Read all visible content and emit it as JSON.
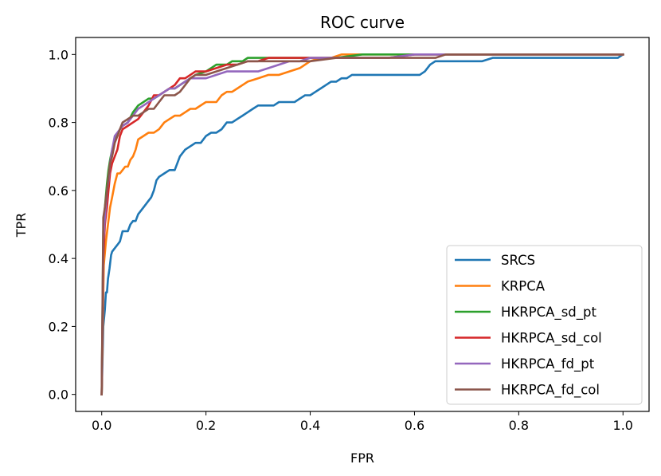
{
  "chart_data": {
    "type": "line",
    "title": "ROC curve",
    "xlabel": "FPR",
    "ylabel": "TPR",
    "xlim": [
      -0.05,
      1.05
    ],
    "ylim": [
      -0.05,
      1.05
    ],
    "xticks": [
      0.0,
      0.2,
      0.4,
      0.6,
      0.8,
      1.0
    ],
    "yticks": [
      0.0,
      0.2,
      0.4,
      0.6,
      0.8,
      1.0
    ],
    "xtick_labels": [
      "0.0",
      "0.2",
      "0.4",
      "0.6",
      "0.8",
      "1.0"
    ],
    "ytick_labels": [
      "0.0",
      "0.2",
      "0.4",
      "0.6",
      "0.8",
      "1.0"
    ],
    "grid": false,
    "legend_position": "lower-right",
    "series": [
      {
        "name": "SRCS",
        "color": "#1f77b4",
        "x": [
          0.0,
          0.003,
          0.006,
          0.008,
          0.01,
          0.012,
          0.015,
          0.018,
          0.02,
          0.025,
          0.03,
          0.035,
          0.04,
          0.05,
          0.055,
          0.06,
          0.065,
          0.07,
          0.08,
          0.09,
          0.095,
          0.1,
          0.105,
          0.11,
          0.12,
          0.13,
          0.14,
          0.15,
          0.16,
          0.17,
          0.18,
          0.19,
          0.2,
          0.21,
          0.22,
          0.23,
          0.24,
          0.25,
          0.26,
          0.27,
          0.28,
          0.29,
          0.3,
          0.31,
          0.32,
          0.33,
          0.34,
          0.35,
          0.36,
          0.37,
          0.38,
          0.39,
          0.4,
          0.41,
          0.42,
          0.43,
          0.44,
          0.45,
          0.46,
          0.47,
          0.48,
          0.5,
          0.52,
          0.55,
          0.58,
          0.6,
          0.61,
          0.62,
          0.63,
          0.64,
          0.65,
          0.67,
          0.7,
          0.73,
          0.75,
          0.8,
          0.9,
          0.99,
          1.0
        ],
        "y": [
          0.0,
          0.2,
          0.25,
          0.3,
          0.3,
          0.34,
          0.37,
          0.41,
          0.42,
          0.43,
          0.44,
          0.45,
          0.48,
          0.48,
          0.5,
          0.51,
          0.51,
          0.53,
          0.55,
          0.57,
          0.58,
          0.6,
          0.63,
          0.64,
          0.65,
          0.66,
          0.66,
          0.7,
          0.72,
          0.73,
          0.74,
          0.74,
          0.76,
          0.77,
          0.77,
          0.78,
          0.8,
          0.8,
          0.81,
          0.82,
          0.83,
          0.84,
          0.85,
          0.85,
          0.85,
          0.85,
          0.86,
          0.86,
          0.86,
          0.86,
          0.87,
          0.88,
          0.88,
          0.89,
          0.9,
          0.91,
          0.92,
          0.92,
          0.93,
          0.93,
          0.94,
          0.94,
          0.94,
          0.94,
          0.94,
          0.94,
          0.94,
          0.95,
          0.97,
          0.98,
          0.98,
          0.98,
          0.98,
          0.98,
          0.99,
          0.99,
          0.99,
          0.99,
          1.0
        ]
      },
      {
        "name": "KRPCA",
        "color": "#ff7f0e",
        "x": [
          0.0,
          0.004,
          0.008,
          0.012,
          0.016,
          0.02,
          0.025,
          0.03,
          0.035,
          0.04,
          0.045,
          0.05,
          0.055,
          0.06,
          0.065,
          0.07,
          0.08,
          0.09,
          0.1,
          0.11,
          0.12,
          0.13,
          0.14,
          0.15,
          0.16,
          0.17,
          0.18,
          0.2,
          0.21,
          0.22,
          0.23,
          0.24,
          0.25,
          0.26,
          0.27,
          0.28,
          0.3,
          0.32,
          0.34,
          0.36,
          0.38,
          0.4,
          0.42,
          0.44,
          0.46,
          0.48,
          0.5,
          0.55,
          0.6,
          0.65,
          0.7,
          0.8,
          0.9,
          1.0
        ],
        "y": [
          0.0,
          0.38,
          0.45,
          0.5,
          0.55,
          0.58,
          0.62,
          0.65,
          0.65,
          0.66,
          0.67,
          0.67,
          0.69,
          0.7,
          0.72,
          0.75,
          0.76,
          0.77,
          0.77,
          0.78,
          0.8,
          0.81,
          0.82,
          0.82,
          0.83,
          0.84,
          0.84,
          0.86,
          0.86,
          0.86,
          0.88,
          0.89,
          0.89,
          0.9,
          0.91,
          0.92,
          0.93,
          0.94,
          0.94,
          0.95,
          0.96,
          0.98,
          0.99,
          0.99,
          1.0,
          1.0,
          1.0,
          1.0,
          1.0,
          1.0,
          1.0,
          1.0,
          1.0,
          1.0
        ]
      },
      {
        "name": "HKRPCA_sd_pt",
        "color": "#2ca02c",
        "x": [
          0.0,
          0.003,
          0.006,
          0.01,
          0.013,
          0.016,
          0.02,
          0.025,
          0.03,
          0.035,
          0.04,
          0.05,
          0.06,
          0.07,
          0.08,
          0.09,
          0.1,
          0.11,
          0.12,
          0.13,
          0.14,
          0.15,
          0.16,
          0.17,
          0.18,
          0.2,
          0.21,
          0.22,
          0.23,
          0.24,
          0.25,
          0.26,
          0.27,
          0.28,
          0.3,
          0.32,
          0.34,
          0.36,
          0.38,
          0.4,
          0.45,
          0.5,
          0.55,
          0.6,
          0.7,
          0.8,
          0.9,
          1.0
        ],
        "y": [
          0.0,
          0.48,
          0.55,
          0.62,
          0.66,
          0.69,
          0.72,
          0.75,
          0.76,
          0.78,
          0.79,
          0.8,
          0.83,
          0.85,
          0.86,
          0.87,
          0.87,
          0.88,
          0.89,
          0.9,
          0.9,
          0.91,
          0.92,
          0.93,
          0.94,
          0.95,
          0.96,
          0.97,
          0.97,
          0.97,
          0.98,
          0.98,
          0.98,
          0.99,
          0.99,
          0.99,
          0.99,
          0.99,
          0.99,
          0.99,
          0.99,
          1.0,
          1.0,
          1.0,
          1.0,
          1.0,
          1.0,
          1.0
        ]
      },
      {
        "name": "HKRPCA_sd_col",
        "color": "#d62728",
        "x": [
          0.0,
          0.003,
          0.006,
          0.01,
          0.013,
          0.016,
          0.02,
          0.025,
          0.03,
          0.035,
          0.04,
          0.05,
          0.06,
          0.07,
          0.08,
          0.09,
          0.1,
          0.11,
          0.12,
          0.13,
          0.14,
          0.15,
          0.16,
          0.17,
          0.18,
          0.2,
          0.22,
          0.24,
          0.26,
          0.28,
          0.3,
          0.32,
          0.34,
          0.36,
          0.38,
          0.4,
          0.45,
          0.5,
          0.55,
          0.6,
          0.7,
          0.8,
          0.9,
          1.0
        ],
        "y": [
          0.0,
          0.4,
          0.5,
          0.55,
          0.6,
          0.65,
          0.68,
          0.7,
          0.72,
          0.76,
          0.78,
          0.79,
          0.8,
          0.81,
          0.83,
          0.85,
          0.88,
          0.88,
          0.89,
          0.9,
          0.91,
          0.93,
          0.93,
          0.94,
          0.95,
          0.95,
          0.96,
          0.97,
          0.97,
          0.98,
          0.98,
          0.99,
          0.99,
          0.99,
          0.99,
          0.99,
          0.99,
          0.99,
          0.99,
          1.0,
          1.0,
          1.0,
          1.0,
          1.0
        ]
      },
      {
        "name": "HKRPCA_fd_pt",
        "color": "#9467bd",
        "x": [
          0.0,
          0.003,
          0.006,
          0.01,
          0.013,
          0.016,
          0.02,
          0.025,
          0.03,
          0.035,
          0.04,
          0.05,
          0.06,
          0.07,
          0.08,
          0.09,
          0.1,
          0.11,
          0.12,
          0.13,
          0.14,
          0.15,
          0.16,
          0.17,
          0.18,
          0.2,
          0.22,
          0.24,
          0.26,
          0.28,
          0.3,
          0.32,
          0.34,
          0.36,
          0.38,
          0.4,
          0.45,
          0.5,
          0.55,
          0.6,
          0.65,
          0.7,
          0.8,
          0.9,
          1.0
        ],
        "y": [
          0.0,
          0.45,
          0.52,
          0.6,
          0.63,
          0.68,
          0.72,
          0.76,
          0.77,
          0.78,
          0.79,
          0.8,
          0.82,
          0.84,
          0.85,
          0.86,
          0.87,
          0.88,
          0.89,
          0.9,
          0.9,
          0.91,
          0.92,
          0.93,
          0.93,
          0.93,
          0.94,
          0.95,
          0.95,
          0.95,
          0.95,
          0.96,
          0.97,
          0.98,
          0.98,
          0.99,
          0.99,
          0.99,
          0.99,
          1.0,
          1.0,
          1.0,
          1.0,
          1.0,
          1.0
        ]
      },
      {
        "name": "HKRPCA_fd_col",
        "color": "#8c564b",
        "x": [
          0.0,
          0.003,
          0.006,
          0.01,
          0.013,
          0.016,
          0.02,
          0.025,
          0.03,
          0.035,
          0.04,
          0.05,
          0.06,
          0.07,
          0.08,
          0.09,
          0.1,
          0.11,
          0.12,
          0.13,
          0.14,
          0.15,
          0.16,
          0.17,
          0.18,
          0.2,
          0.22,
          0.24,
          0.26,
          0.28,
          0.3,
          0.35,
          0.4,
          0.45,
          0.5,
          0.55,
          0.6,
          0.62,
          0.64,
          0.66,
          0.7,
          0.8,
          0.9,
          1.0
        ],
        "y": [
          0.0,
          0.52,
          0.55,
          0.6,
          0.64,
          0.68,
          0.7,
          0.74,
          0.76,
          0.78,
          0.8,
          0.81,
          0.82,
          0.82,
          0.83,
          0.84,
          0.84,
          0.86,
          0.88,
          0.88,
          0.88,
          0.89,
          0.91,
          0.93,
          0.94,
          0.94,
          0.95,
          0.96,
          0.97,
          0.98,
          0.98,
          0.98,
          0.98,
          0.99,
          0.99,
          0.99,
          0.99,
          0.99,
          0.99,
          1.0,
          1.0,
          1.0,
          1.0,
          1.0
        ]
      }
    ]
  }
}
